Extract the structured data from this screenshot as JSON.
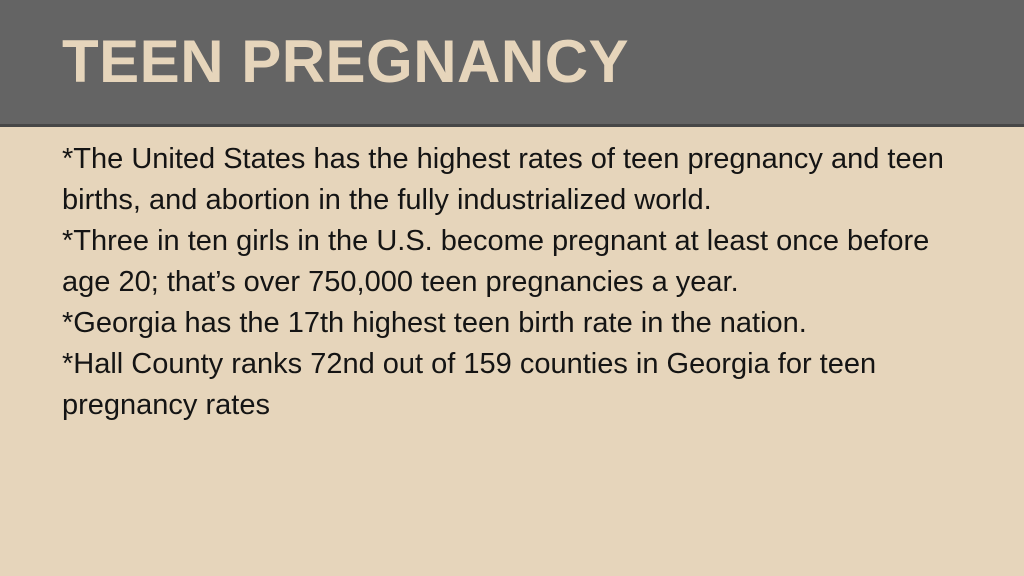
{
  "header": {
    "title": "TEEN PREGNANCY"
  },
  "body": {
    "bullets": [
      "*The United States has the highest rates of teen pregnancy and teen births, and abortion in the fully industrialized world.",
      "*Three in ten girls in the U.S. become pregnant at least once before age 20; that’s over 750,000 teen pregnancies a year.",
      "*Georgia has the 17th highest teen birth rate in the nation.",
      "*Hall County ranks 72nd out of 159 counties in Georgia for teen pregnancy rates"
    ]
  }
}
